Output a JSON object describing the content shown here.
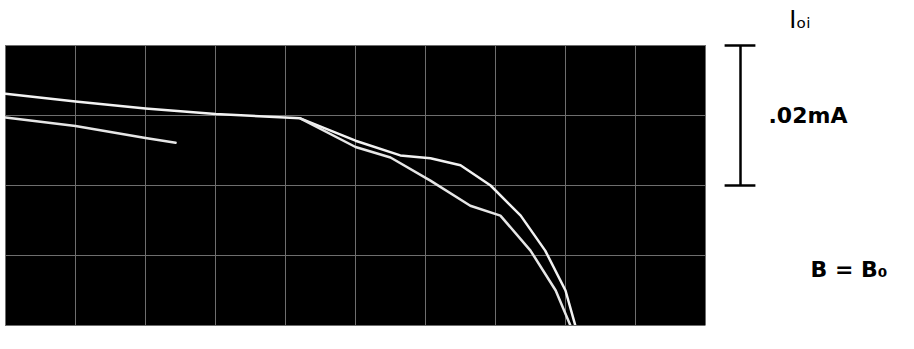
{
  "chart_data": {
    "type": "line",
    "y_label": "Iₒᵢ",
    "annotations": [
      "B = B₀"
    ],
    "scale_bar": {
      "label": ".02mA",
      "span": [
        2,
        4
      ]
    },
    "xlim": [
      0,
      10
    ],
    "ylim": [
      0,
      4
    ],
    "xticks": [
      0,
      1,
      2,
      3,
      4,
      5,
      6,
      7,
      8,
      9,
      10
    ],
    "yticks": [
      0,
      1,
      2,
      3,
      4
    ],
    "grid": true,
    "tick_labels": false,
    "series": [
      {
        "color": "#f2f2f2",
        "x": [
          0,
          1,
          2,
          3,
          4.21,
          5,
          5.64,
          6.07,
          6.5,
          6.93,
          7.36,
          7.71,
          8.0,
          8.14
        ],
        "values": [
          3.31,
          3.2,
          3.1,
          3.02,
          2.96,
          2.64,
          2.43,
          2.39,
          2.29,
          2.0,
          1.57,
          1.07,
          0.5,
          0
        ]
      },
      {
        "color": "#e6e6e6",
        "x": [
          0,
          1,
          2,
          2.43,
          3.3,
          4.21,
          5,
          5.5,
          6.07,
          6.64,
          7.07,
          7.5,
          7.86,
          8.07
        ],
        "values": [
          2.97,
          2.85,
          2.68,
          2.61,
          null,
          2.96,
          2.55,
          2.4,
          2.07,
          1.71,
          1.57,
          1.07,
          0.5,
          0
        ]
      }
    ]
  }
}
